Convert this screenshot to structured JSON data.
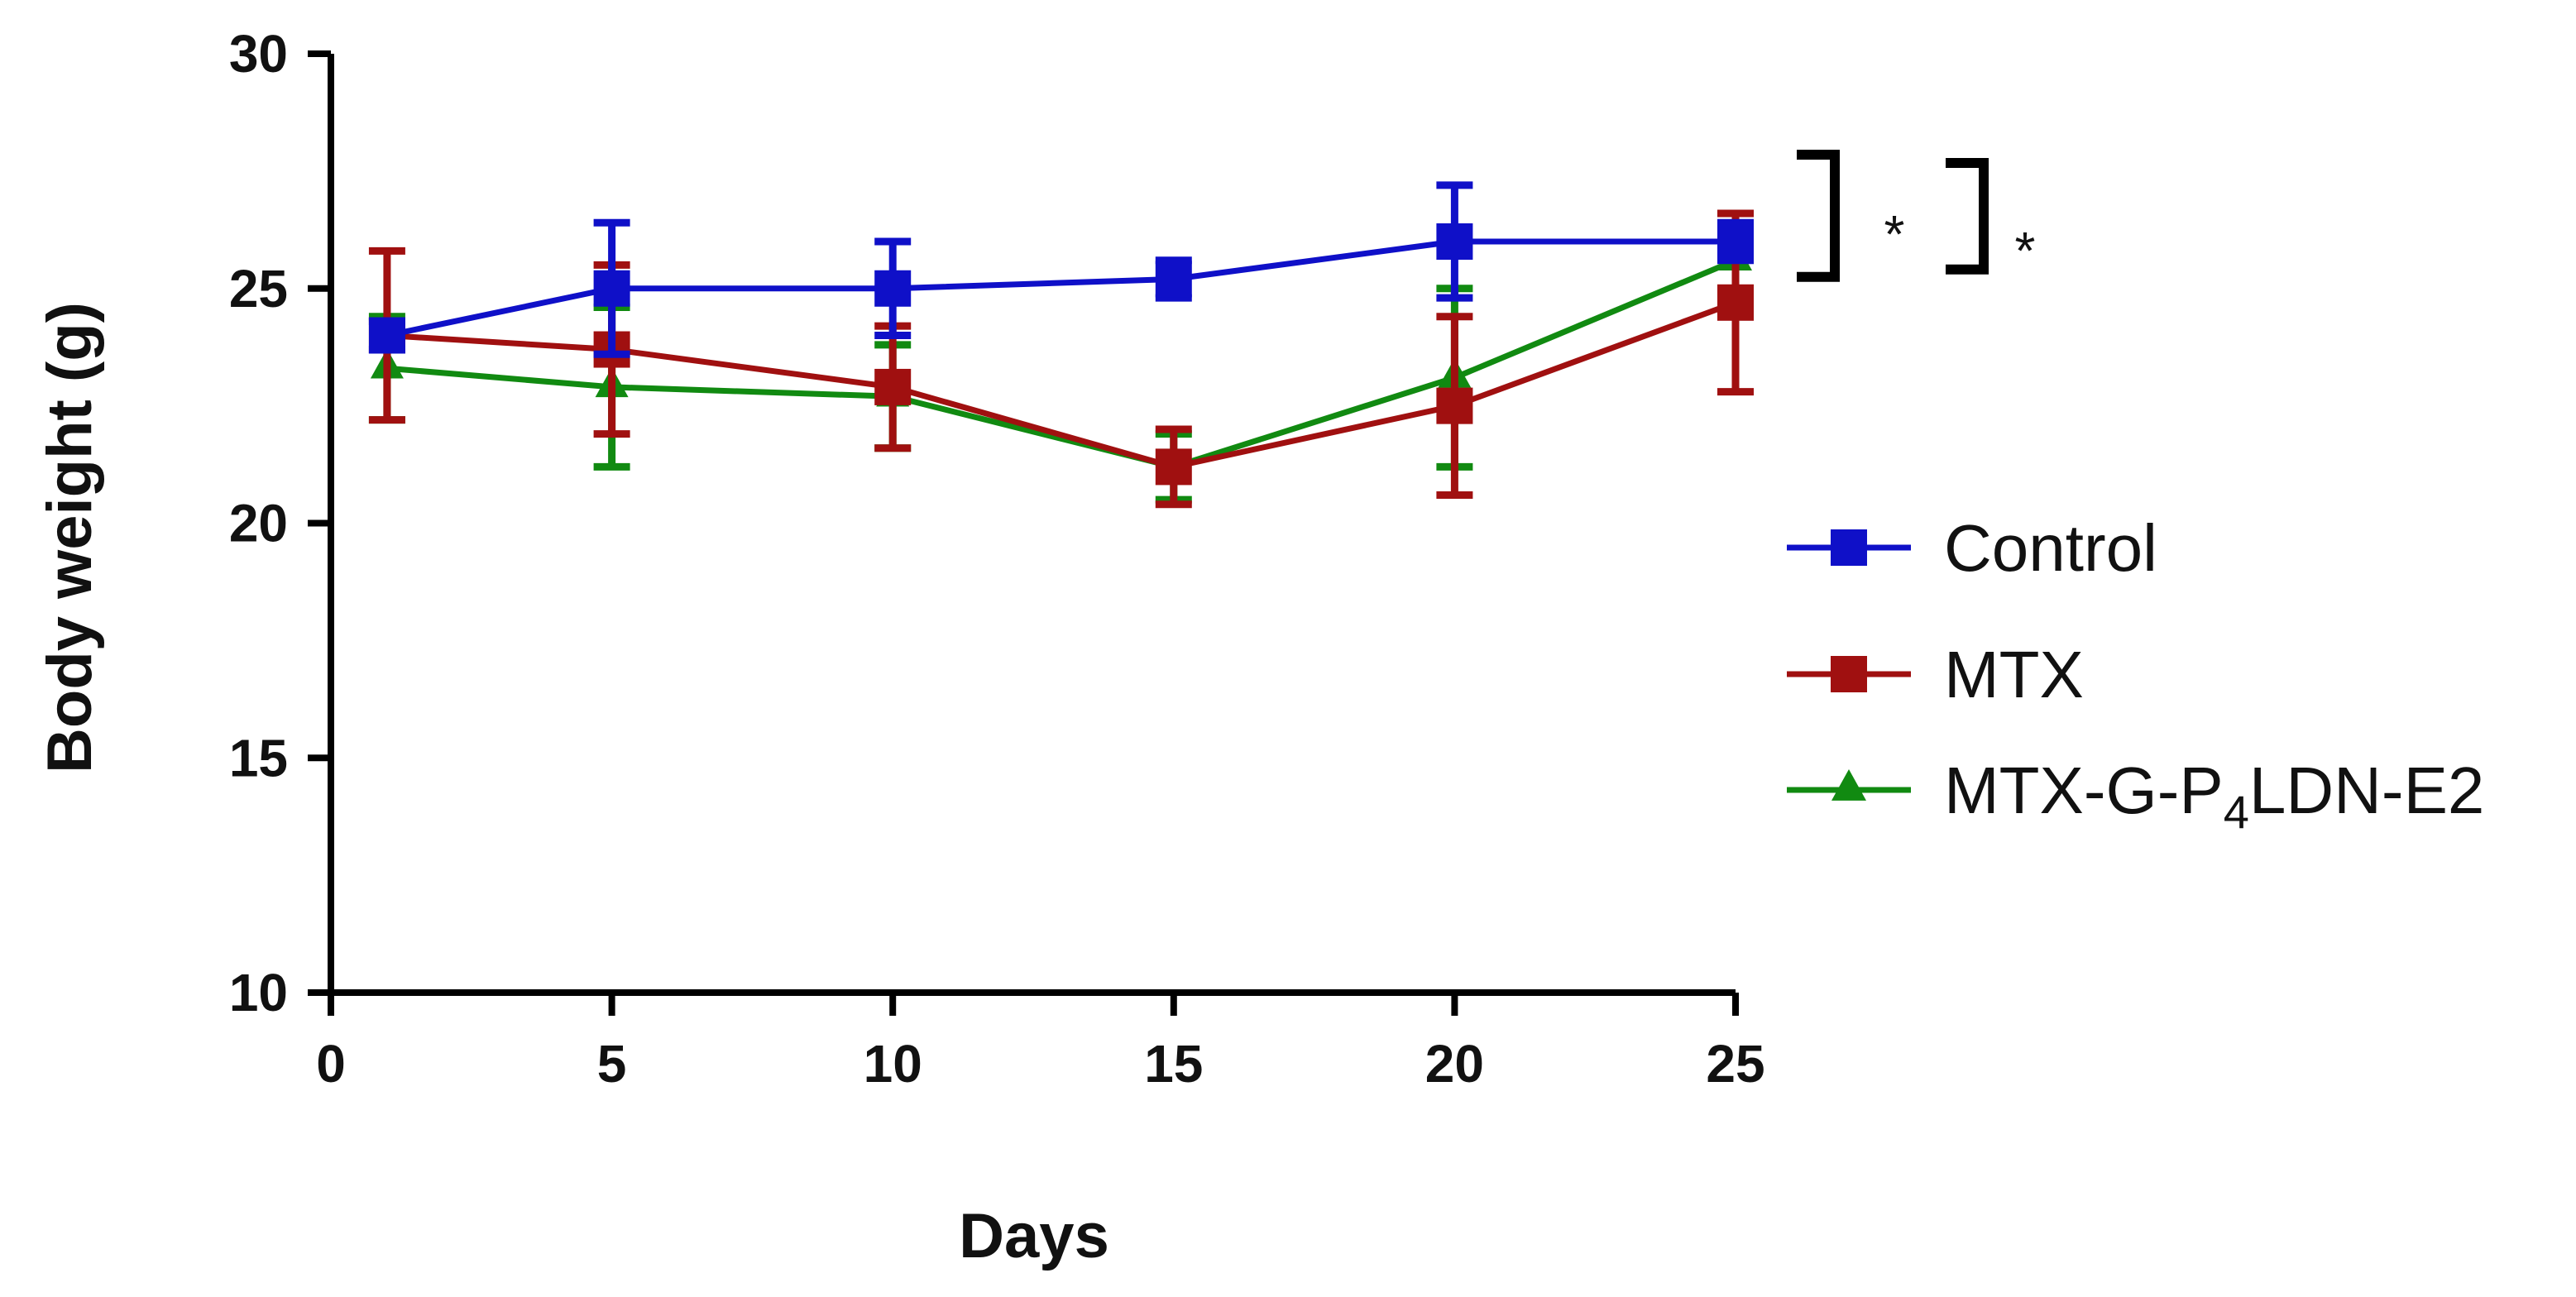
{
  "chart_data": {
    "type": "line",
    "title": "",
    "xlabel": "Days",
    "ylabel": "Body weight (g)",
    "xlim": [
      0,
      25
    ],
    "ylim": [
      10,
      30
    ],
    "xticks": [
      0,
      5,
      10,
      15,
      20,
      25
    ],
    "yticks": [
      10,
      15,
      20,
      25,
      30
    ],
    "grid": false,
    "legend_position": "right",
    "series": [
      {
        "name": "Control",
        "color": "#0f10c8",
        "marker": "square",
        "x": [
          1,
          5,
          10,
          15,
          20,
          25
        ],
        "y": [
          24.0,
          25.0,
          25.0,
          25.2,
          26.0,
          26.0
        ],
        "err": [
          0.3,
          1.4,
          1.0,
          0.4,
          1.2,
          0.4
        ]
      },
      {
        "name": "MTX",
        "color": "#a01010",
        "marker": "square",
        "x": [
          1,
          5,
          10,
          15,
          20,
          25
        ],
        "y": [
          24.0,
          23.7,
          22.9,
          21.2,
          22.5,
          24.7
        ],
        "err": [
          1.8,
          1.8,
          1.3,
          0.8,
          1.9,
          1.9
        ]
      },
      {
        "name": "MTX-G-P4LDN-E2",
        "legend_parts": {
          "before": "MTX-G-P",
          "sub": "4",
          "after": "LDN-E2"
        },
        "color": "#118a11",
        "marker": "triangle",
        "x": [
          1,
          5,
          10,
          15,
          20,
          25
        ],
        "y": [
          23.3,
          22.9,
          22.7,
          21.2,
          23.1,
          25.6
        ],
        "err": [
          1.1,
          1.7,
          1.1,
          0.7,
          1.9,
          1.0
        ]
      }
    ],
    "annotations": [
      {
        "text": "*",
        "between": [
          "Control",
          "MTX-G-P4LDN-E2"
        ]
      },
      {
        "text": "*",
        "between": [
          "Control",
          "MTX"
        ]
      }
    ]
  }
}
